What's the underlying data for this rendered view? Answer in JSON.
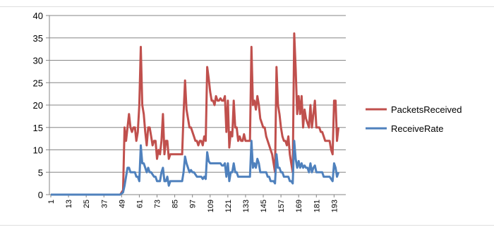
{
  "spreadsheet": {
    "background": "#ffffff",
    "gridline_color": "#d0d7e5"
  },
  "chart_data": {
    "type": "line",
    "title": "",
    "xlabel": "",
    "ylabel": "",
    "ylim": [
      0,
      40
    ],
    "yticks": [
      0,
      5,
      10,
      15,
      20,
      25,
      30,
      35,
      40
    ],
    "xlim": [
      1,
      200
    ],
    "xticks": [
      "1",
      "13",
      "25",
      "37",
      "49",
      "61",
      "73",
      "85",
      "97",
      "109",
      "121",
      "133",
      "145",
      "157",
      "169",
      "181",
      "193"
    ],
    "grid": true,
    "legend_position": "right",
    "series": [
      {
        "name": "PacketsReceived",
        "color": "#c0504d",
        "points": [
          [
            1,
            0
          ],
          [
            48,
            0
          ],
          [
            50,
            1
          ],
          [
            51,
            15
          ],
          [
            52,
            12
          ],
          [
            53,
            15
          ],
          [
            54,
            18
          ],
          [
            55,
            15
          ],
          [
            56,
            14
          ],
          [
            57,
            15
          ],
          [
            58,
            15
          ],
          [
            59,
            12
          ],
          [
            60,
            14
          ],
          [
            61,
            20
          ],
          [
            62,
            33
          ],
          [
            63,
            20
          ],
          [
            64,
            18
          ],
          [
            65,
            14
          ],
          [
            66,
            11
          ],
          [
            67,
            15
          ],
          [
            68,
            15
          ],
          [
            69,
            13
          ],
          [
            70,
            11
          ],
          [
            71,
            12
          ],
          [
            72,
            12
          ],
          [
            73,
            8
          ],
          [
            74,
            10
          ],
          [
            75,
            9
          ],
          [
            76,
            12
          ],
          [
            77,
            18
          ],
          [
            78,
            9
          ],
          [
            79,
            12
          ],
          [
            80,
            12
          ],
          [
            81,
            8
          ],
          [
            82,
            9
          ],
          [
            83,
            9
          ],
          [
            84,
            9
          ],
          [
            85,
            9
          ],
          [
            86,
            9
          ],
          [
            87,
            9
          ],
          [
            88,
            9
          ],
          [
            89,
            9
          ],
          [
            90,
            9
          ],
          [
            91,
            18
          ],
          [
            92,
            25.5
          ],
          [
            93,
            19
          ],
          [
            94,
            17
          ],
          [
            95,
            15
          ],
          [
            96,
            15
          ],
          [
            97,
            14
          ],
          [
            98,
            13
          ],
          [
            99,
            12
          ],
          [
            100,
            12
          ],
          [
            101,
            11
          ],
          [
            102,
            12
          ],
          [
            103,
            12
          ],
          [
            104,
            11
          ],
          [
            105,
            13
          ],
          [
            106,
            12
          ],
          [
            107,
            28.5
          ],
          [
            108,
            26
          ],
          [
            109,
            23
          ],
          [
            110,
            21
          ],
          [
            111,
            21
          ],
          [
            112,
            20
          ],
          [
            113,
            22
          ],
          [
            114,
            21
          ],
          [
            115,
            21
          ],
          [
            116,
            21.5
          ],
          [
            117,
            21
          ],
          [
            118,
            21
          ],
          [
            119,
            22
          ],
          [
            120,
            14
          ],
          [
            121,
            21
          ],
          [
            122,
            10.5
          ],
          [
            123,
            14
          ],
          [
            124,
            13
          ],
          [
            125,
            21
          ],
          [
            126,
            15
          ],
          [
            127,
            15
          ],
          [
            128,
            12
          ],
          [
            129,
            13
          ],
          [
            130,
            12
          ],
          [
            131,
            12
          ],
          [
            132,
            13.5
          ],
          [
            133,
            12
          ],
          [
            134,
            12
          ],
          [
            135,
            12
          ],
          [
            136,
            12
          ],
          [
            137,
            33
          ],
          [
            138,
            20
          ],
          [
            139,
            21
          ],
          [
            140,
            19
          ],
          [
            141,
            22
          ],
          [
            142,
            20
          ],
          [
            143,
            17
          ],
          [
            144,
            16
          ],
          [
            145,
            15
          ],
          [
            146,
            15
          ],
          [
            147,
            13
          ],
          [
            148,
            12
          ],
          [
            149,
            11
          ],
          [
            150,
            10
          ],
          [
            151,
            9
          ],
          [
            152,
            7
          ],
          [
            153,
            5
          ],
          [
            154,
            28.5
          ],
          [
            155,
            20
          ],
          [
            156,
            18
          ],
          [
            157,
            15
          ],
          [
            158,
            13
          ],
          [
            159,
            12
          ],
          [
            160,
            12
          ],
          [
            161,
            11
          ],
          [
            162,
            13
          ],
          [
            163,
            9
          ],
          [
            164,
            7
          ],
          [
            165,
            5
          ],
          [
            166,
            36
          ],
          [
            167,
            28
          ],
          [
            168,
            18
          ],
          [
            169,
            22
          ],
          [
            170,
            18
          ],
          [
            171,
            22
          ],
          [
            172,
            15
          ],
          [
            173,
            19
          ],
          [
            174,
            17
          ],
          [
            175,
            16
          ],
          [
            176,
            15
          ],
          [
            177,
            20
          ],
          [
            178,
            15
          ],
          [
            179,
            18
          ],
          [
            180,
            21
          ],
          [
            181,
            15
          ],
          [
            182,
            15
          ],
          [
            183,
            15
          ],
          [
            184,
            14
          ],
          [
            185,
            14
          ],
          [
            186,
            13
          ],
          [
            187,
            12
          ],
          [
            188,
            12
          ],
          [
            189,
            12
          ],
          [
            190,
            12
          ],
          [
            191,
            10
          ],
          [
            192,
            9
          ],
          [
            193,
            21
          ],
          [
            194,
            21
          ],
          [
            195,
            12
          ],
          [
            196,
            15
          ]
        ]
      },
      {
        "name": "ReceiveRate",
        "color": "#4f81bd",
        "points": [
          [
            1,
            0
          ],
          [
            48,
            0
          ],
          [
            50,
            0.5
          ],
          [
            51,
            2
          ],
          [
            52,
            4
          ],
          [
            53,
            6
          ],
          [
            54,
            6
          ],
          [
            55,
            5
          ],
          [
            56,
            5
          ],
          [
            57,
            5
          ],
          [
            58,
            5
          ],
          [
            59,
            4
          ],
          [
            60,
            4
          ],
          [
            61,
            3
          ],
          [
            62,
            11
          ],
          [
            63,
            7
          ],
          [
            64,
            7
          ],
          [
            65,
            6
          ],
          [
            66,
            5
          ],
          [
            67,
            6
          ],
          [
            68,
            5
          ],
          [
            69,
            5
          ],
          [
            70,
            4.5
          ],
          [
            71,
            4
          ],
          [
            72,
            4
          ],
          [
            73,
            3
          ],
          [
            74,
            3
          ],
          [
            75,
            3
          ],
          [
            76,
            5
          ],
          [
            77,
            6
          ],
          [
            78,
            3
          ],
          [
            79,
            3
          ],
          [
            80,
            4
          ],
          [
            81,
            2
          ],
          [
            82,
            3
          ],
          [
            83,
            3
          ],
          [
            84,
            3
          ],
          [
            85,
            3
          ],
          [
            86,
            3
          ],
          [
            87,
            3
          ],
          [
            88,
            3
          ],
          [
            89,
            3
          ],
          [
            90,
            3
          ],
          [
            91,
            5
          ],
          [
            92,
            8.5
          ],
          [
            93,
            7
          ],
          [
            94,
            6
          ],
          [
            95,
            5
          ],
          [
            96,
            5.5
          ],
          [
            97,
            5
          ],
          [
            98,
            5
          ],
          [
            99,
            4.5
          ],
          [
            100,
            4
          ],
          [
            101,
            4
          ],
          [
            102,
            4
          ],
          [
            103,
            4
          ],
          [
            104,
            3.5
          ],
          [
            105,
            4
          ],
          [
            106,
            3.5
          ],
          [
            107,
            9.5
          ],
          [
            108,
            7.5
          ],
          [
            109,
            7
          ],
          [
            110,
            7
          ],
          [
            111,
            7
          ],
          [
            112,
            7
          ],
          [
            113,
            7
          ],
          [
            114,
            7
          ],
          [
            115,
            7
          ],
          [
            116,
            7
          ],
          [
            117,
            6.5
          ],
          [
            118,
            6.5
          ],
          [
            119,
            7
          ],
          [
            120,
            4
          ],
          [
            121,
            7
          ],
          [
            122,
            3
          ],
          [
            123,
            5
          ],
          [
            124,
            5
          ],
          [
            125,
            7
          ],
          [
            126,
            5
          ],
          [
            127,
            5
          ],
          [
            128,
            4
          ],
          [
            129,
            4
          ],
          [
            130,
            4
          ],
          [
            131,
            4
          ],
          [
            132,
            4
          ],
          [
            133,
            4
          ],
          [
            134,
            4
          ],
          [
            135,
            4
          ],
          [
            136,
            4
          ],
          [
            137,
            12
          ],
          [
            138,
            6
          ],
          [
            139,
            7
          ],
          [
            140,
            6
          ],
          [
            141,
            8
          ],
          [
            142,
            7
          ],
          [
            143,
            5
          ],
          [
            144,
            5
          ],
          [
            145,
            5
          ],
          [
            146,
            5
          ],
          [
            147,
            5
          ],
          [
            148,
            4
          ],
          [
            149,
            4
          ],
          [
            150,
            3
          ],
          [
            151,
            3
          ],
          [
            152,
            3
          ],
          [
            153,
            2.5
          ],
          [
            154,
            9
          ],
          [
            155,
            6
          ],
          [
            156,
            6
          ],
          [
            157,
            5
          ],
          [
            158,
            5
          ],
          [
            159,
            4
          ],
          [
            160,
            4
          ],
          [
            161,
            4
          ],
          [
            162,
            4
          ],
          [
            163,
            3
          ],
          [
            164,
            3
          ],
          [
            165,
            2.5
          ],
          [
            166,
            12
          ],
          [
            167,
            8
          ],
          [
            168,
            6
          ],
          [
            169,
            7.5
          ],
          [
            170,
            6
          ],
          [
            171,
            7
          ],
          [
            172,
            6
          ],
          [
            173,
            6.5
          ],
          [
            174,
            6
          ],
          [
            175,
            6
          ],
          [
            176,
            5
          ],
          [
            177,
            7
          ],
          [
            178,
            5
          ],
          [
            179,
            6
          ],
          [
            180,
            6.5
          ],
          [
            181,
            5
          ],
          [
            182,
            5
          ],
          [
            183,
            5
          ],
          [
            184,
            5
          ],
          [
            185,
            5
          ],
          [
            186,
            4
          ],
          [
            187,
            4
          ],
          [
            188,
            4
          ],
          [
            189,
            4
          ],
          [
            190,
            4
          ],
          [
            191,
            3.5
          ],
          [
            192,
            3
          ],
          [
            193,
            7
          ],
          [
            194,
            6
          ],
          [
            195,
            4
          ],
          [
            196,
            5
          ]
        ]
      }
    ]
  }
}
